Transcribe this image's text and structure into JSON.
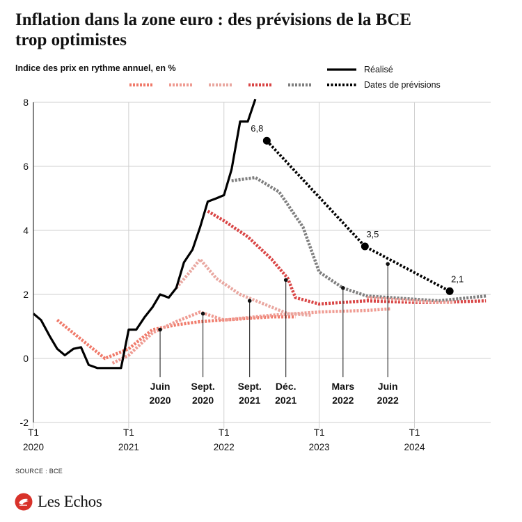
{
  "header": {
    "title_line1": "Inflation dans la zone euro : des prévisions de la BCE",
    "title_line2": "trop optimistes"
  },
  "footer": {
    "source": "SOURCE : BCE",
    "brand": "Les Echos"
  },
  "colors": {
    "realized": "#000000",
    "forecast_dates": "#000000",
    "grid": "#cfcfcf",
    "axis": "#333333",
    "logo_red": "#d8322a"
  },
  "chart_data": {
    "type": "line",
    "ylabel": "Indice des prix en rythme annuel, en %",
    "ylim": [
      -2,
      8
    ],
    "yticks": [
      -2,
      0,
      2,
      4,
      6,
      8
    ],
    "xlim": [
      2020.0,
      2024.8
    ],
    "xticks": [
      {
        "x": 2020.0,
        "line1": "T1",
        "line2": "2020"
      },
      {
        "x": 2021.0,
        "line1": "T1",
        "line2": "2021"
      },
      {
        "x": 2022.0,
        "line1": "T1",
        "line2": "2022"
      },
      {
        "x": 2023.0,
        "line1": "T1",
        "line2": "2023"
      },
      {
        "x": 2024.0,
        "line1": "T1",
        "line2": "2024"
      }
    ],
    "legend": {
      "placement": "top-right",
      "realized_label": "Réalisé",
      "forecast_dates_label": "Dates de prévisions"
    },
    "realized": {
      "name": "Réalisé",
      "color": "#000000",
      "points": [
        [
          2020.0,
          1.4
        ],
        [
          2020.08,
          1.2
        ],
        [
          2020.17,
          0.7
        ],
        [
          2020.25,
          0.3
        ],
        [
          2020.33,
          0.1
        ],
        [
          2020.42,
          0.3
        ],
        [
          2020.5,
          0.35
        ],
        [
          2020.58,
          -0.2
        ],
        [
          2020.67,
          -0.3
        ],
        [
          2020.75,
          -0.3
        ],
        [
          2020.83,
          -0.3
        ],
        [
          2020.92,
          -0.3
        ],
        [
          2021.0,
          0.9
        ],
        [
          2021.08,
          0.9
        ],
        [
          2021.17,
          1.3
        ],
        [
          2021.25,
          1.6
        ],
        [
          2021.33,
          2.0
        ],
        [
          2021.42,
          1.9
        ],
        [
          2021.5,
          2.2
        ],
        [
          2021.58,
          3.0
        ],
        [
          2021.67,
          3.4
        ],
        [
          2021.75,
          4.1
        ],
        [
          2021.83,
          4.9
        ],
        [
          2021.92,
          5.0
        ],
        [
          2022.0,
          5.1
        ],
        [
          2022.08,
          5.9
        ],
        [
          2022.17,
          7.4
        ],
        [
          2022.25,
          7.4
        ],
        [
          2022.33,
          8.1
        ]
      ]
    },
    "forecast_dates": {
      "name": "Dates de prévisions",
      "color": "#000000",
      "points": [
        [
          2022.45,
          6.8
        ],
        [
          2023.48,
          3.5
        ],
        [
          2024.37,
          2.1
        ]
      ],
      "labels": [
        "6,8",
        "3,5",
        "2,1"
      ]
    },
    "forecasts": [
      {
        "line1": "Juin",
        "line2": "2020",
        "color": "#f07a6a",
        "marker": [
          2021.33,
          0.9
        ],
        "points": [
          [
            2020.25,
            1.2
          ],
          [
            2020.75,
            0.0
          ],
          [
            2021.0,
            0.3
          ],
          [
            2021.25,
            0.9
          ],
          [
            2021.5,
            1.05
          ],
          [
            2021.75,
            1.15
          ],
          [
            2022.0,
            1.2
          ],
          [
            2022.5,
            1.3
          ],
          [
            2022.75,
            1.3
          ]
        ]
      },
      {
        "line1": "Sept.",
        "line2": "2020",
        "color": "#ef9b92",
        "marker": [
          2021.78,
          1.4
        ],
        "points": [
          [
            2020.83,
            -0.15
          ],
          [
            2021.0,
            0.1
          ],
          [
            2021.25,
            0.8
          ],
          [
            2021.5,
            1.15
          ],
          [
            2021.75,
            1.45
          ],
          [
            2022.0,
            1.2
          ],
          [
            2022.5,
            1.35
          ],
          [
            2023.0,
            1.45
          ],
          [
            2023.5,
            1.5
          ],
          [
            2023.75,
            1.55
          ]
        ]
      },
      {
        "line1": "Sept.",
        "line2": "2021",
        "color": "#e9a7a0",
        "marker": [
          2022.27,
          1.8
        ],
        "points": [
          [
            2021.5,
            2.2
          ],
          [
            2021.67,
            2.8
          ],
          [
            2021.75,
            3.1
          ],
          [
            2021.92,
            2.5
          ],
          [
            2022.17,
            2.0
          ],
          [
            2022.42,
            1.7
          ],
          [
            2022.67,
            1.4
          ],
          [
            2022.92,
            1.35
          ]
        ]
      },
      {
        "line1": "Déc.",
        "line2": "2021",
        "color": "#d94545",
        "marker": [
          2022.65,
          2.45
        ],
        "points": [
          [
            2021.83,
            4.6
          ],
          [
            2022.0,
            4.3
          ],
          [
            2022.25,
            3.8
          ],
          [
            2022.5,
            3.1
          ],
          [
            2022.67,
            2.5
          ],
          [
            2022.75,
            1.9
          ],
          [
            2023.0,
            1.7
          ],
          [
            2023.5,
            1.8
          ],
          [
            2024.0,
            1.75
          ],
          [
            2024.25,
            1.75
          ],
          [
            2024.75,
            1.8
          ]
        ]
      },
      {
        "line1": "Mars",
        "line2": "2022",
        "color": "#7f7f7f",
        "marker": [
          2023.25,
          2.2
        ],
        "points": [
          [
            2022.08,
            5.55
          ],
          [
            2022.33,
            5.65
          ],
          [
            2022.58,
            5.2
          ],
          [
            2022.83,
            4.1
          ],
          [
            2023.0,
            2.7
          ],
          [
            2023.25,
            2.2
          ],
          [
            2023.5,
            1.95
          ],
          [
            2023.75,
            1.9
          ],
          [
            2024.0,
            1.85
          ],
          [
            2024.25,
            1.8
          ],
          [
            2024.75,
            1.95
          ]
        ]
      },
      {
        "line1": "Juin",
        "line2": "2022",
        "color": "#ee9e97",
        "marker": [
          2023.72,
          2.95
        ],
        "points": [
          [
            2023.5,
            1.9
          ],
          [
            2023.75,
            1.85
          ],
          [
            2024.0,
            1.8
          ],
          [
            2024.25,
            1.75
          ],
          [
            2024.42,
            1.75
          ]
        ]
      }
    ]
  }
}
